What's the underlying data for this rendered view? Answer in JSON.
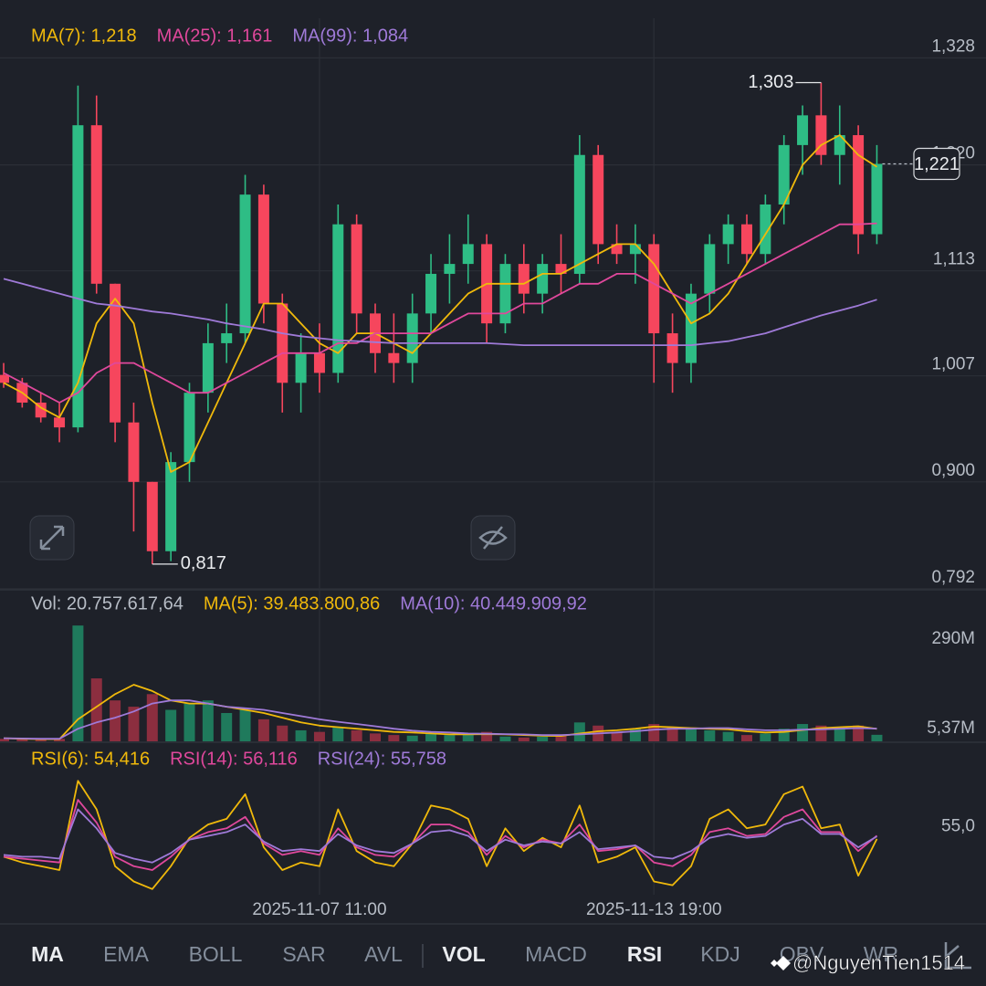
{
  "chart_data": [
    {
      "type": "candlestick",
      "categories": [
        null,
        null,
        null,
        null,
        null,
        null,
        null,
        null,
        null,
        null,
        null,
        null,
        null,
        null,
        null,
        null,
        null,
        "2025-11-07 11:00",
        null,
        null,
        null,
        null,
        null,
        null,
        null,
        null,
        null,
        null,
        null,
        null,
        null,
        null,
        null,
        null,
        null,
        "2025-11-13 19:00",
        null,
        null,
        null,
        null,
        null,
        null,
        null,
        null,
        null,
        null,
        null,
        null
      ],
      "open": [
        1.008,
        1.0,
        0.98,
        0.965,
        0.955,
        1.26,
        1.1,
        0.96,
        0.9,
        0.83,
        0.92,
        0.99,
        1.04,
        1.05,
        1.19,
        1.08,
        1.0,
        1.03,
        1.01,
        1.16,
        1.07,
        1.03,
        1.02,
        1.07,
        1.11,
        1.12,
        1.14,
        1.06,
        1.12,
        1.09,
        1.12,
        1.11,
        1.23,
        1.14,
        1.13,
        1.14,
        1.05,
        1.02,
        1.09,
        1.14,
        1.16,
        1.13,
        1.18,
        1.24,
        1.27,
        1.23,
        1.25,
        1.15
      ],
      "high": [
        1.02,
        1.005,
        0.99,
        0.98,
        1.3,
        1.29,
        1.1,
        0.98,
        0.9,
        0.93,
        1.0,
        1.06,
        1.08,
        1.21,
        1.2,
        1.09,
        1.05,
        1.06,
        1.18,
        1.17,
        1.08,
        1.07,
        1.09,
        1.13,
        1.15,
        1.17,
        1.15,
        1.13,
        1.14,
        1.13,
        1.15,
        1.25,
        1.24,
        1.16,
        1.16,
        1.15,
        1.07,
        1.1,
        1.15,
        1.17,
        1.17,
        1.19,
        1.25,
        1.28,
        1.303,
        1.28,
        1.26,
        1.24
      ],
      "low": [
        0.995,
        0.975,
        0.96,
        0.94,
        0.95,
        1.09,
        0.94,
        0.85,
        0.817,
        0.82,
        0.9,
        0.97,
        1.02,
        1.04,
        1.06,
        0.97,
        0.97,
        0.99,
        1.0,
        1.05,
        1.01,
        1.0,
        1.0,
        1.05,
        1.08,
        1.1,
        1.04,
        1.05,
        1.07,
        1.07,
        1.09,
        1.1,
        1.12,
        1.12,
        1.1,
        1.0,
        0.99,
        1.0,
        1.07,
        1.12,
        1.12,
        1.12,
        1.16,
        1.21,
        1.22,
        1.2,
        1.13,
        1.14
      ],
      "close": [
        1.0,
        0.98,
        0.965,
        0.955,
        1.26,
        1.1,
        0.96,
        0.9,
        0.83,
        0.92,
        0.99,
        1.04,
        1.05,
        1.19,
        1.08,
        1.0,
        1.03,
        1.01,
        1.16,
        1.07,
        1.03,
        1.02,
        1.07,
        1.11,
        1.12,
        1.14,
        1.06,
        1.12,
        1.09,
        1.12,
        1.11,
        1.23,
        1.14,
        1.13,
        1.14,
        1.05,
        1.02,
        1.09,
        1.14,
        1.16,
        1.13,
        1.18,
        1.24,
        1.27,
        1.23,
        1.25,
        1.15,
        1.221
      ],
      "up_color": "#2ebd85",
      "down_color": "#f6465d",
      "series": [
        {
          "name": "MA(7): 1,218",
          "color": "#f0b90b",
          "values": [
            1.0,
            0.99,
            0.975,
            0.965,
            1.0,
            1.06,
            1.085,
            1.06,
            0.98,
            0.91,
            0.92,
            0.96,
            1.0,
            1.04,
            1.08,
            1.08,
            1.06,
            1.04,
            1.03,
            1.05,
            1.05,
            1.04,
            1.03,
            1.05,
            1.07,
            1.09,
            1.1,
            1.1,
            1.1,
            1.11,
            1.11,
            1.12,
            1.13,
            1.14,
            1.14,
            1.12,
            1.09,
            1.06,
            1.07,
            1.09,
            1.12,
            1.15,
            1.18,
            1.22,
            1.24,
            1.25,
            1.23,
            1.218
          ]
        },
        {
          "name": "MA(25): 1,161",
          "color": "#e0489c",
          "values": [
            1.01,
            1.0,
            0.99,
            0.98,
            0.99,
            1.01,
            1.02,
            1.02,
            1.01,
            1.0,
            0.99,
            0.99,
            1.0,
            1.01,
            1.02,
            1.03,
            1.03,
            1.03,
            1.04,
            1.04,
            1.05,
            1.05,
            1.05,
            1.05,
            1.06,
            1.07,
            1.07,
            1.07,
            1.08,
            1.08,
            1.09,
            1.1,
            1.1,
            1.11,
            1.11,
            1.1,
            1.09,
            1.08,
            1.09,
            1.1,
            1.11,
            1.12,
            1.13,
            1.14,
            1.15,
            1.16,
            1.16,
            1.161
          ]
        },
        {
          "name": "MA(99): 1,084",
          "color": "#9f7ad8",
          "values": [
            1.105,
            1.1,
            1.095,
            1.09,
            1.085,
            1.08,
            1.078,
            1.075,
            1.072,
            1.07,
            1.067,
            1.064,
            1.06,
            1.057,
            1.054,
            1.05,
            1.047,
            1.045,
            1.043,
            1.042,
            1.041,
            1.04,
            1.04,
            1.04,
            1.04,
            1.04,
            1.04,
            1.039,
            1.038,
            1.038,
            1.038,
            1.038,
            1.038,
            1.038,
            1.038,
            1.038,
            1.038,
            1.038,
            1.04,
            1.042,
            1.046,
            1.05,
            1.056,
            1.062,
            1.068,
            1.073,
            1.078,
            1.084
          ]
        }
      ],
      "ylim": [
        0.792,
        1.368
      ],
      "yticks": [
        {
          "value": 1.328,
          "label": "1,328"
        },
        {
          "value": 1.22,
          "label": "1,220"
        },
        {
          "value": 1.113,
          "label": "1,113"
        },
        {
          "value": 1.007,
          "label": "1,007"
        },
        {
          "value": 0.9,
          "label": "0,900"
        },
        {
          "value": 0.792,
          "label": "0,792"
        }
      ],
      "grid": true,
      "annotations": [
        {
          "value": 1.303,
          "label": "1,303"
        },
        {
          "value": 0.817,
          "label": "0,817"
        }
      ],
      "last_price": {
        "value": 1.221,
        "label": "1,221"
      }
    },
    {
      "type": "bar",
      "legend": "Vol: 20.757.617,64",
      "values": [
        8,
        6,
        5,
        8,
        368,
        200,
        130,
        110,
        150,
        100,
        120,
        130,
        90,
        100,
        70,
        50,
        35,
        30,
        45,
        35,
        25,
        20,
        18,
        25,
        20,
        22,
        30,
        15,
        12,
        15,
        20,
        60,
        50,
        30,
        40,
        55,
        45,
        40,
        35,
        30,
        20,
        25,
        40,
        55,
        50,
        45,
        50,
        20.75761764
      ],
      "up_color": "#1f7a5c",
      "down_color": "#8c2e3f",
      "series": [
        {
          "name": "MA(5): 39.483.800,86",
          "color": "#f0b90b",
          "values": [
            10,
            8,
            7,
            7,
            70,
            110,
            150,
            180,
            160,
            130,
            120,
            120,
            110,
            100,
            90,
            75,
            60,
            50,
            45,
            40,
            35,
            30,
            28,
            25,
            22,
            22,
            23,
            22,
            20,
            18,
            17,
            25,
            32,
            35,
            40,
            47,
            45,
            42,
            40,
            38,
            32,
            28,
            30,
            36,
            42,
            45,
            48,
            39.48380086
          ]
        },
        {
          "name": "MA(10): 40.449.909,92",
          "color": "#9f7ad8",
          "values": [
            10,
            9,
            8,
            8,
            40,
            60,
            75,
            95,
            120,
            130,
            130,
            120,
            110,
            105,
            100,
            90,
            80,
            70,
            62,
            55,
            48,
            40,
            34,
            30,
            28,
            25,
            24,
            23,
            22,
            20,
            20,
            22,
            25,
            28,
            32,
            37,
            40,
            40,
            42,
            42,
            38,
            35,
            35,
            37,
            38,
            40,
            42,
            40.44990992
          ]
        }
      ],
      "ylim": [
        0,
        470
      ],
      "yticks": [
        {
          "value": 5.37,
          "label": "5,37M"
        },
        {
          "value": 290,
          "label": "290M"
        }
      ]
    },
    {
      "type": "line",
      "series": [
        {
          "name": "RSI(6): 54,416",
          "color": "#f0b90b",
          "values": [
            45,
            42,
            40,
            38,
            85,
            70,
            40,
            32,
            28,
            40,
            55,
            62,
            65,
            78,
            50,
            38,
            42,
            40,
            70,
            48,
            42,
            40,
            52,
            72,
            70,
            65,
            40,
            60,
            48,
            55,
            50,
            72,
            42,
            45,
            50,
            32,
            30,
            40,
            65,
            70,
            60,
            62,
            78,
            82,
            60,
            62,
            35,
            54.416
          ]
        },
        {
          "name": "RSI(14): 56,116",
          "color": "#e0489c",
          "values": [
            45,
            44,
            43,
            42,
            75,
            63,
            45,
            40,
            38,
            45,
            54,
            58,
            60,
            66,
            52,
            46,
            48,
            46,
            60,
            50,
            46,
            45,
            52,
            62,
            62,
            58,
            46,
            56,
            50,
            54,
            52,
            62,
            48,
            49,
            51,
            42,
            40,
            46,
            58,
            60,
            56,
            57,
            66,
            70,
            58,
            58,
            48,
            56.116
          ]
        },
        {
          "name": "RSI(24): 55,758",
          "color": "#9f7ad8",
          "values": [
            46,
            45,
            45,
            44,
            70,
            60,
            47,
            44,
            42,
            47,
            54,
            56,
            58,
            62,
            53,
            48,
            49,
            48,
            57,
            51,
            48,
            47,
            52,
            58,
            59,
            56,
            48,
            54,
            51,
            53,
            52,
            58,
            49,
            50,
            51,
            45,
            44,
            48,
            55,
            57,
            55,
            56,
            62,
            65,
            57,
            57,
            50,
            55.758
          ]
        }
      ],
      "ylim": [
        25,
        102
      ],
      "yticks": [
        {
          "value": 55,
          "label": "55,0"
        }
      ]
    }
  ],
  "tabs": [
    {
      "label": "MA",
      "active": true
    },
    {
      "label": "EMA",
      "active": false
    },
    {
      "label": "BOLL",
      "active": false
    },
    {
      "label": "SAR",
      "active": false
    },
    {
      "label": "AVL",
      "active": false
    },
    {
      "label": "VOL",
      "active": true
    },
    {
      "label": "MACD",
      "active": false
    },
    {
      "label": "RSI",
      "active": true
    },
    {
      "label": "KDJ",
      "active": false
    },
    {
      "label": "OBV",
      "active": false
    },
    {
      "label": "WR",
      "active": false
    }
  ],
  "watermark": "@NguyenTien1514"
}
